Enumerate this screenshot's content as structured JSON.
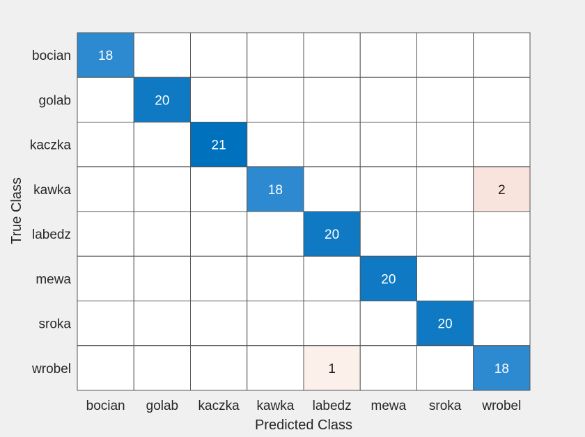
{
  "chart_data": {
    "type": "heatmap",
    "row_labels": [
      "bocian",
      "golab",
      "kaczka",
      "kawka",
      "labedz",
      "mewa",
      "sroka",
      "wrobel"
    ],
    "col_labels": [
      "bocian",
      "golab",
      "kaczka",
      "kawka",
      "labedz",
      "mewa",
      "sroka",
      "wrobel"
    ],
    "values": [
      [
        18,
        0,
        0,
        0,
        0,
        0,
        0,
        0
      ],
      [
        0,
        20,
        0,
        0,
        0,
        0,
        0,
        0
      ],
      [
        0,
        0,
        21,
        0,
        0,
        0,
        0,
        0
      ],
      [
        0,
        0,
        0,
        18,
        0,
        0,
        0,
        2
      ],
      [
        0,
        0,
        0,
        0,
        20,
        0,
        0,
        0
      ],
      [
        0,
        0,
        0,
        0,
        0,
        20,
        0,
        0
      ],
      [
        0,
        0,
        0,
        0,
        0,
        0,
        20,
        0
      ],
      [
        0,
        0,
        0,
        0,
        1,
        0,
        0,
        18
      ]
    ],
    "xlabel": "Predicted Class",
    "ylabel": "True Class",
    "grid": true,
    "colors": {
      "correct_max": "#0072bd",
      "correct_min": "#2e8ad0",
      "error_max": "#f9e4dd",
      "error_min": "#fbf0ea",
      "empty": "#ffffff",
      "gridline": "#555555",
      "text_dark": "#1a1a1a",
      "text_light": "#ffffff",
      "background": "#f0f0f0"
    }
  }
}
